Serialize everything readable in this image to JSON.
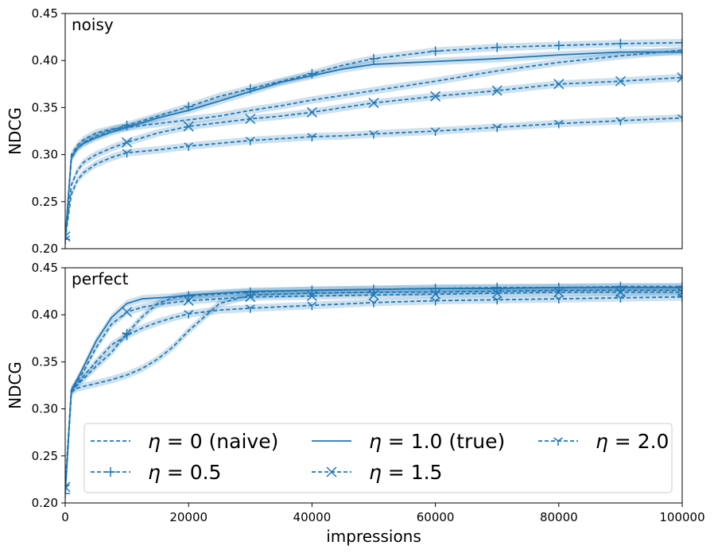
{
  "chart_data": [
    {
      "type": "line",
      "panel_label": "noisy",
      "xlabel": "",
      "ylabel": "NDCG",
      "xlim": [
        0,
        100000
      ],
      "ylim": [
        0.2,
        0.45
      ],
      "yticks": [
        0.2,
        0.25,
        0.3,
        0.35,
        0.4,
        0.45
      ],
      "ytick_labels": [
        "0.20",
        "0.25",
        "0.30",
        "0.35",
        "0.40",
        "0.45"
      ],
      "x": [
        0,
        1000,
        2000,
        3000,
        5000,
        7500,
        10000,
        15000,
        20000,
        25000,
        30000,
        35000,
        40000,
        45000,
        50000,
        60000,
        70000,
        80000,
        90000,
        100000
      ],
      "series": [
        {
          "name": "η = 0 (naive)",
          "marker": "none",
          "dash": true,
          "values": [
            0.21,
            0.3,
            0.31,
            0.316,
            0.323,
            0.327,
            0.329,
            0.333,
            0.337,
            0.341,
            0.347,
            0.352,
            0.358,
            0.363,
            0.368,
            0.378,
            0.389,
            0.398,
            0.405,
            0.411
          ]
        },
        {
          "name": "η = 0.5",
          "marker": "plus",
          "dash": true,
          "values": [
            0.21,
            0.296,
            0.307,
            0.313,
            0.32,
            0.326,
            0.331,
            0.341,
            0.351,
            0.362,
            0.37,
            0.378,
            0.386,
            0.395,
            0.402,
            0.41,
            0.414,
            0.416,
            0.418,
            0.419
          ]
        },
        {
          "name": "η = 1.0 (true)",
          "marker": "none",
          "dash": false,
          "values": [
            0.21,
            0.297,
            0.307,
            0.312,
            0.318,
            0.324,
            0.329,
            0.339,
            0.347,
            0.357,
            0.367,
            0.377,
            0.384,
            0.391,
            0.396,
            0.399,
            0.402,
            0.406,
            0.409,
            0.409
          ]
        },
        {
          "name": "η = 1.5",
          "marker": "x",
          "dash": true,
          "values": [
            0.213,
            0.268,
            0.283,
            0.292,
            0.3,
            0.307,
            0.313,
            0.323,
            0.33,
            0.334,
            0.338,
            0.341,
            0.345,
            0.35,
            0.355,
            0.362,
            0.368,
            0.375,
            0.378,
            0.382
          ]
        },
        {
          "name": "η = 2.0",
          "marker": "tri_down",
          "dash": true,
          "values": [
            0.21,
            0.258,
            0.273,
            0.281,
            0.29,
            0.297,
            0.302,
            0.305,
            0.309,
            0.312,
            0.315,
            0.317,
            0.319,
            0.32,
            0.322,
            0.325,
            0.329,
            0.333,
            0.336,
            0.339
          ]
        }
      ]
    },
    {
      "type": "line",
      "panel_label": "perfect",
      "xlabel": "impressions",
      "ylabel": "NDCG",
      "xlim": [
        0,
        100000
      ],
      "ylim": [
        0.2,
        0.45
      ],
      "yticks": [
        0.2,
        0.25,
        0.3,
        0.35,
        0.4,
        0.45
      ],
      "ytick_labels": [
        "0.20",
        "0.25",
        "0.30",
        "0.35",
        "0.40",
        "0.45"
      ],
      "xticks": [
        0,
        20000,
        40000,
        60000,
        80000,
        100000
      ],
      "xtick_labels": [
        "0",
        "20000",
        "40000",
        "60000",
        "80000",
        "100000"
      ],
      "x": [
        0,
        1000,
        2000,
        3000,
        5000,
        7500,
        10000,
        12500,
        15000,
        17500,
        20000,
        25000,
        30000,
        40000,
        50000,
        60000,
        70000,
        80000,
        90000,
        100000
      ],
      "series": [
        {
          "name": "η = 0 (naive)",
          "marker": "none",
          "dash": true,
          "values": [
            0.21,
            0.318,
            0.322,
            0.324,
            0.327,
            0.331,
            0.336,
            0.343,
            0.353,
            0.366,
            0.383,
            0.412,
            0.421,
            0.423,
            0.424,
            0.424,
            0.425,
            0.426,
            0.426,
            0.426
          ]
        },
        {
          "name": "η = 0.5",
          "marker": "plus",
          "dash": true,
          "values": [
            0.21,
            0.318,
            0.326,
            0.332,
            0.345,
            0.36,
            0.38,
            0.398,
            0.412,
            0.418,
            0.42,
            0.422,
            0.424,
            0.426,
            0.427,
            0.428,
            0.429,
            0.429,
            0.43,
            0.43
          ]
        },
        {
          "name": "η = 1.0 (true)",
          "marker": "none",
          "dash": false,
          "values": [
            0.21,
            0.32,
            0.332,
            0.345,
            0.372,
            0.397,
            0.412,
            0.417,
            0.418,
            0.419,
            0.421,
            0.423,
            0.425,
            0.426,
            0.427,
            0.428,
            0.428,
            0.429,
            0.429,
            0.429
          ]
        },
        {
          "name": "η = 1.5",
          "marker": "x",
          "dash": true,
          "values": [
            0.217,
            0.32,
            0.33,
            0.34,
            0.365,
            0.39,
            0.403,
            0.408,
            0.411,
            0.413,
            0.415,
            0.417,
            0.419,
            0.42,
            0.421,
            0.422,
            0.423,
            0.424,
            0.424,
            0.424
          ]
        },
        {
          "name": "η = 2.0",
          "marker": "tri_down",
          "dash": true,
          "values": [
            0.216,
            0.32,
            0.327,
            0.335,
            0.35,
            0.368,
            0.378,
            0.386,
            0.392,
            0.397,
            0.401,
            0.405,
            0.407,
            0.41,
            0.413,
            0.415,
            0.416,
            0.417,
            0.418,
            0.419
          ]
        }
      ]
    }
  ],
  "legend": {
    "placement": "lower-center of bottom panel",
    "entries": [
      {
        "prefix": "η",
        "label": " = 0 (naive)",
        "marker": "none",
        "dash": true
      },
      {
        "prefix": "η",
        "label": " = 1.0 (true)",
        "marker": "none",
        "dash": false
      },
      {
        "prefix": "η",
        "label": " = 2.0",
        "marker": "tri_down",
        "dash": true
      },
      {
        "prefix": "η",
        "label": " = 0.5",
        "marker": "plus",
        "dash": true
      },
      {
        "prefix": "η",
        "label": " = 1.5",
        "marker": "x",
        "dash": true
      }
    ]
  },
  "colors": {
    "line": "#1f77b4",
    "band": "#1f77b4"
  }
}
